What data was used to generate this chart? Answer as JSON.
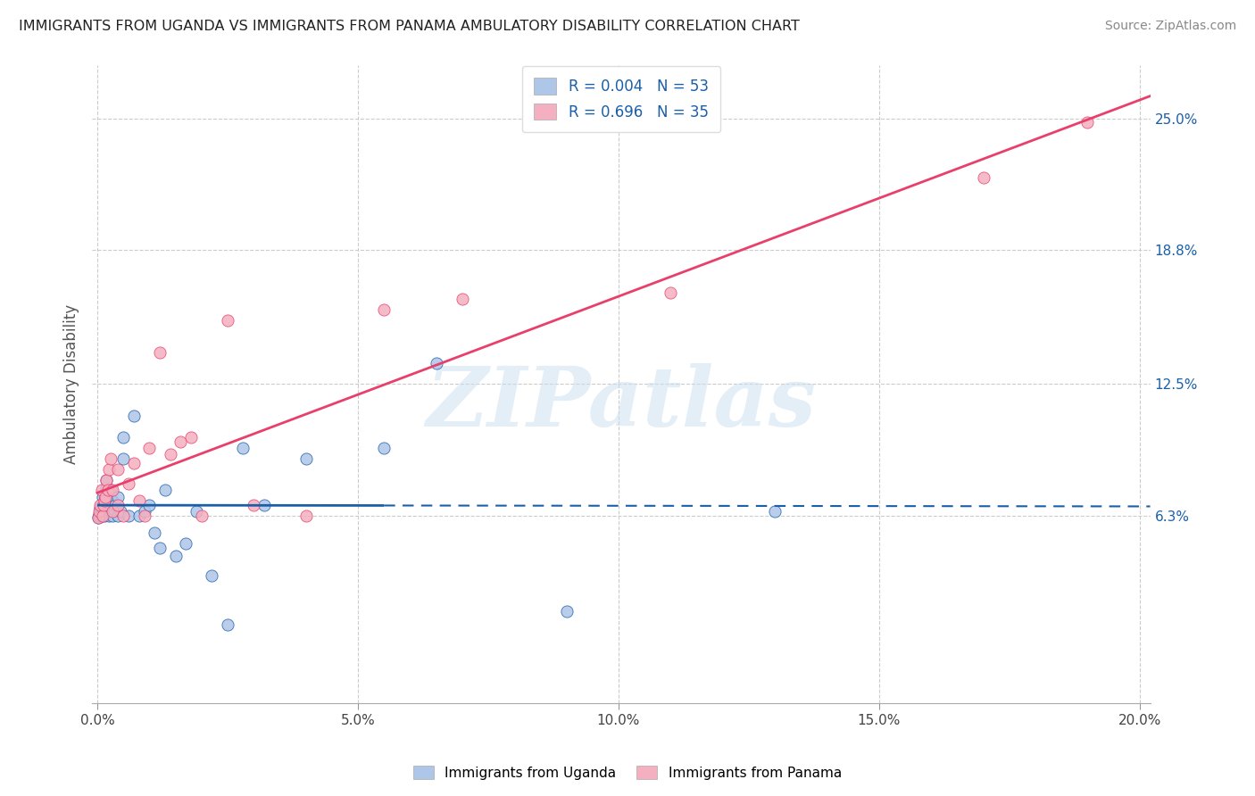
{
  "title": "IMMIGRANTS FROM UGANDA VS IMMIGRANTS FROM PANAMA AMBULATORY DISABILITY CORRELATION CHART",
  "source": "Source: ZipAtlas.com",
  "xlabel_ticks": [
    "0.0%",
    "5.0%",
    "10.0%",
    "15.0%",
    "20.0%"
  ],
  "xlabel_vals": [
    0.0,
    0.05,
    0.1,
    0.15,
    0.2
  ],
  "ylabel_ticks_right": [
    "6.3%",
    "12.5%",
    "18.8%",
    "25.0%"
  ],
  "ylabel_vals_right": [
    0.063,
    0.125,
    0.188,
    0.25
  ],
  "xlim": [
    -0.001,
    0.202
  ],
  "ylim": [
    -0.025,
    0.275
  ],
  "ylabel": "Ambulatory Disability",
  "legend_label1": "Immigrants from Uganda",
  "legend_label2": "Immigrants from Panama",
  "R1": "0.004",
  "N1": "53",
  "R2": "0.696",
  "N2": "35",
  "color_uganda": "#aec6e8",
  "color_panama": "#f4b0c0",
  "line_color_uganda": "#1a5fa8",
  "line_color_panama": "#e8406a",
  "watermark_text": "ZIPatlas",
  "uganda_x": [
    0.0002,
    0.0003,
    0.0004,
    0.0005,
    0.0006,
    0.0007,
    0.0008,
    0.0009,
    0.001,
    0.001,
    0.0012,
    0.0013,
    0.0014,
    0.0015,
    0.0016,
    0.0017,
    0.0018,
    0.002,
    0.002,
    0.0022,
    0.0023,
    0.0024,
    0.0025,
    0.0026,
    0.003,
    0.003,
    0.0032,
    0.0035,
    0.004,
    0.004,
    0.0045,
    0.005,
    0.005,
    0.006,
    0.007,
    0.008,
    0.009,
    0.01,
    0.011,
    0.012,
    0.013,
    0.015,
    0.017,
    0.019,
    0.022,
    0.025,
    0.028,
    0.032,
    0.04,
    0.055,
    0.065,
    0.09,
    0.13
  ],
  "uganda_y": [
    0.062,
    0.064,
    0.063,
    0.065,
    0.067,
    0.066,
    0.063,
    0.064,
    0.068,
    0.072,
    0.065,
    0.063,
    0.07,
    0.068,
    0.072,
    0.076,
    0.08,
    0.065,
    0.068,
    0.063,
    0.067,
    0.072,
    0.075,
    0.07,
    0.063,
    0.07,
    0.066,
    0.068,
    0.063,
    0.072,
    0.065,
    0.09,
    0.1,
    0.063,
    0.11,
    0.063,
    0.065,
    0.068,
    0.055,
    0.048,
    0.075,
    0.044,
    0.05,
    0.065,
    0.035,
    0.012,
    0.095,
    0.068,
    0.09,
    0.095,
    0.135,
    0.018,
    0.065
  ],
  "panama_x": [
    0.0002,
    0.0004,
    0.0006,
    0.0008,
    0.001,
    0.0012,
    0.0014,
    0.0016,
    0.0018,
    0.002,
    0.0022,
    0.0025,
    0.003,
    0.003,
    0.004,
    0.004,
    0.005,
    0.006,
    0.007,
    0.008,
    0.009,
    0.01,
    0.012,
    0.014,
    0.016,
    0.018,
    0.02,
    0.025,
    0.03,
    0.04,
    0.055,
    0.07,
    0.11,
    0.17,
    0.19
  ],
  "panama_y": [
    0.062,
    0.065,
    0.068,
    0.075,
    0.063,
    0.068,
    0.07,
    0.072,
    0.08,
    0.075,
    0.085,
    0.09,
    0.065,
    0.075,
    0.068,
    0.085,
    0.063,
    0.078,
    0.088,
    0.07,
    0.063,
    0.095,
    0.14,
    0.092,
    0.098,
    0.1,
    0.063,
    0.155,
    0.068,
    0.063,
    0.16,
    0.165,
    0.168,
    0.222,
    0.248
  ]
}
